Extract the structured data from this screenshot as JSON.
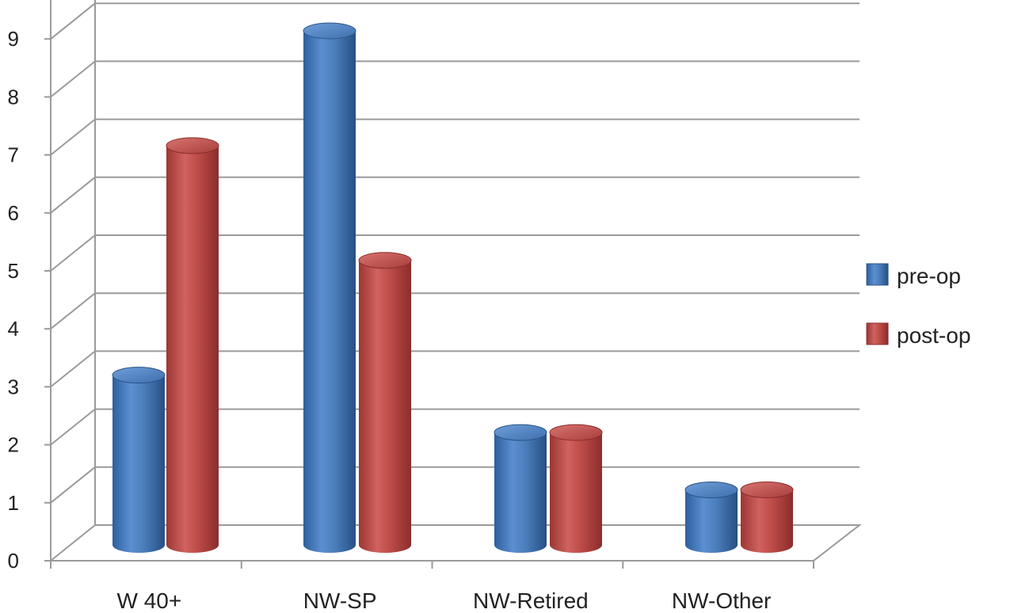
{
  "chart_data": {
    "type": "bar",
    "style": "3d-cylinder",
    "categories": [
      "W 40+",
      "NW-SP",
      "NW-Retired",
      "NW-Other"
    ],
    "series": [
      {
        "name": "pre-op",
        "color": "#4a7ebb",
        "values": [
          3,
          9,
          2,
          1
        ]
      },
      {
        "name": "post-op",
        "color": "#be4b48",
        "values": [
          7,
          5,
          2,
          1
        ]
      }
    ],
    "yticks": [
      "0",
      "1",
      "2",
      "3",
      "4",
      "5",
      "6",
      "7",
      "8",
      "9"
    ],
    "ylim": [
      0,
      9
    ],
    "grid": true,
    "legend_position": "right",
    "title": "",
    "xlabel": "",
    "ylabel": ""
  }
}
